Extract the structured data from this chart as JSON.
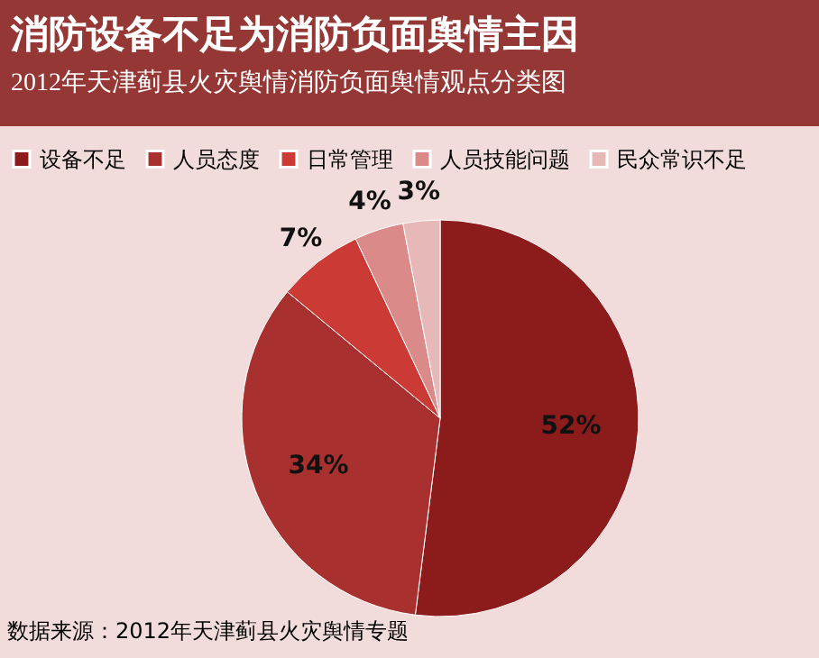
{
  "chart_data": {
    "type": "pie",
    "title": "消防设备不足为消防负面舆情主因",
    "subtitle": "2012年天津蓟县火灾舆情消防负面舆情观点分类图",
    "categories": [
      "设备不足",
      "人员态度",
      "日常管理",
      "人员技能问题",
      "民众常识不足"
    ],
    "values": [
      52,
      34,
      7,
      4,
      3
    ],
    "colors": [
      "#8c1c1c",
      "#a8302e",
      "#cc3a36",
      "#d98a89",
      "#e6b8b7"
    ],
    "value_labels": [
      "52%",
      "34%",
      "7%",
      "4%",
      "3%"
    ],
    "legend": "top",
    "annotations": [
      "数据来源：2012年天津蓟县火灾舆情专题"
    ]
  }
}
